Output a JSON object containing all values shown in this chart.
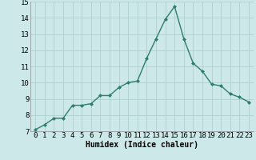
{
  "x": [
    0,
    1,
    2,
    3,
    4,
    5,
    6,
    7,
    8,
    9,
    10,
    11,
    12,
    13,
    14,
    15,
    16,
    17,
    18,
    19,
    20,
    21,
    22,
    23
  ],
  "y": [
    7.1,
    7.4,
    7.8,
    7.8,
    8.6,
    8.6,
    8.7,
    9.2,
    9.2,
    9.7,
    10.0,
    10.1,
    11.5,
    12.7,
    13.9,
    14.7,
    12.7,
    11.2,
    10.7,
    9.9,
    9.8,
    9.3,
    9.1,
    8.8
  ],
  "line_color": "#2e7d6e",
  "marker": "D",
  "marker_size": 2.0,
  "line_width": 1.0,
  "bg_color": "#cce8e8",
  "grid_color": "#aacccc",
  "xlabel": "Humidex (Indice chaleur)",
  "xlabel_fontsize": 7,
  "tick_fontsize": 6.5,
  "ylim": [
    7,
    15
  ],
  "xlim": [
    -0.5,
    23.5
  ],
  "yticks": [
    7,
    8,
    9,
    10,
    11,
    12,
    13,
    14,
    15
  ],
  "xticks": [
    0,
    1,
    2,
    3,
    4,
    5,
    6,
    7,
    8,
    9,
    10,
    11,
    12,
    13,
    14,
    15,
    16,
    17,
    18,
    19,
    20,
    21,
    22,
    23
  ]
}
